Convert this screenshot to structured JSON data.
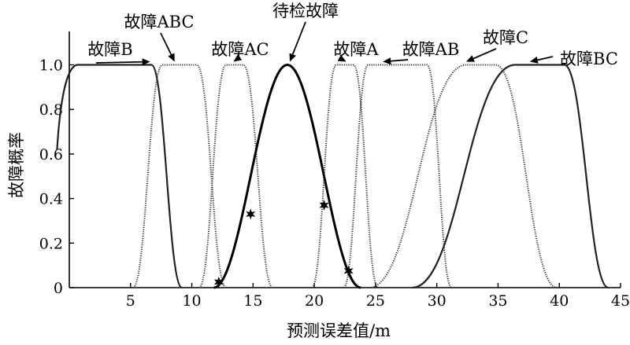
{
  "chart_data": {
    "type": "line",
    "xlabel": "预测误差值/m",
    "ylabel": "故障概率",
    "xlim": [
      0,
      45
    ],
    "ylim": [
      0,
      1.15
    ],
    "xticks": [
      5,
      10,
      15,
      20,
      25,
      30,
      35,
      40,
      45
    ],
    "yticks": [
      0,
      0.2,
      0.4,
      0.6,
      0.8,
      1.0
    ],
    "ytick_labels": [
      "0",
      "0.2",
      "0.4",
      "0.6",
      "0.8",
      "1.0"
    ],
    "grid": false,
    "series": [
      {
        "name": "故障B",
        "shape": "trapezoid",
        "points": [
          [
            -1,
            0.62
          ],
          [
            0.7,
            1.0
          ],
          [
            6.7,
            1.0
          ],
          [
            9.2,
            0.0
          ]
        ]
      },
      {
        "name": "故障ABC",
        "shape": "trapezoid",
        "points": [
          [
            5.2,
            0.0
          ],
          [
            7.6,
            1.0
          ],
          [
            10.4,
            1.0
          ],
          [
            12.8,
            0.0
          ]
        ]
      },
      {
        "name": "故障AC",
        "shape": "trapezoid",
        "points": [
          [
            10.6,
            0.0
          ],
          [
            12.8,
            1.0
          ],
          [
            14.2,
            1.0
          ],
          [
            16.6,
            0.0
          ]
        ]
      },
      {
        "name": "待检故障",
        "shape": "bell",
        "center": 17.8,
        "halfwidth": 6.0
      },
      {
        "name": "故障A",
        "shape": "trapezoid",
        "points": [
          [
            19.8,
            0.0
          ],
          [
            21.8,
            1.0
          ],
          [
            23.2,
            1.0
          ],
          [
            25.2,
            0.0
          ]
        ]
      },
      {
        "name": "故障AB",
        "shape": "trapezoid",
        "points": [
          [
            22.4,
            0.0
          ],
          [
            24.4,
            1.0
          ],
          [
            29.2,
            1.0
          ],
          [
            31.2,
            0.0
          ]
        ]
      },
      {
        "name": "故障C",
        "shape": "trapezoid",
        "points": [
          [
            24.5,
            0.0
          ],
          [
            32.4,
            1.0
          ],
          [
            34.8,
            1.0
          ],
          [
            39.8,
            0.0
          ]
        ]
      },
      {
        "name": "故障BC",
        "shape": "trapezoid",
        "points": [
          [
            28.0,
            0.0
          ],
          [
            36.4,
            1.0
          ],
          [
            40.4,
            1.0
          ],
          [
            44.0,
            0.0
          ]
        ]
      }
    ],
    "markers": [
      {
        "x": 12.2,
        "y": 0.025
      },
      {
        "x": 14.8,
        "y": 0.33
      },
      {
        "x": 20.8,
        "y": 0.37
      },
      {
        "x": 22.8,
        "y": 0.075
      }
    ],
    "annotations": [
      {
        "text": "故障B",
        "target": [
          6.6,
          1.0
        ]
      },
      {
        "text": "故障ABC",
        "target": [
          8.6,
          1.0
        ]
      },
      {
        "text": "故障AC",
        "target": [
          13.4,
          1.0
        ]
      },
      {
        "text": "待检故障",
        "target": [
          18.0,
          1.0
        ]
      },
      {
        "text": "故障A",
        "target": [
          22.6,
          1.0
        ]
      },
      {
        "text": "故障AB",
        "target": [
          25.6,
          1.0
        ]
      },
      {
        "text": "故障C",
        "target": [
          32.4,
          1.0
        ]
      },
      {
        "text": "故障BC",
        "target": [
          37.6,
          1.0
        ]
      }
    ]
  }
}
